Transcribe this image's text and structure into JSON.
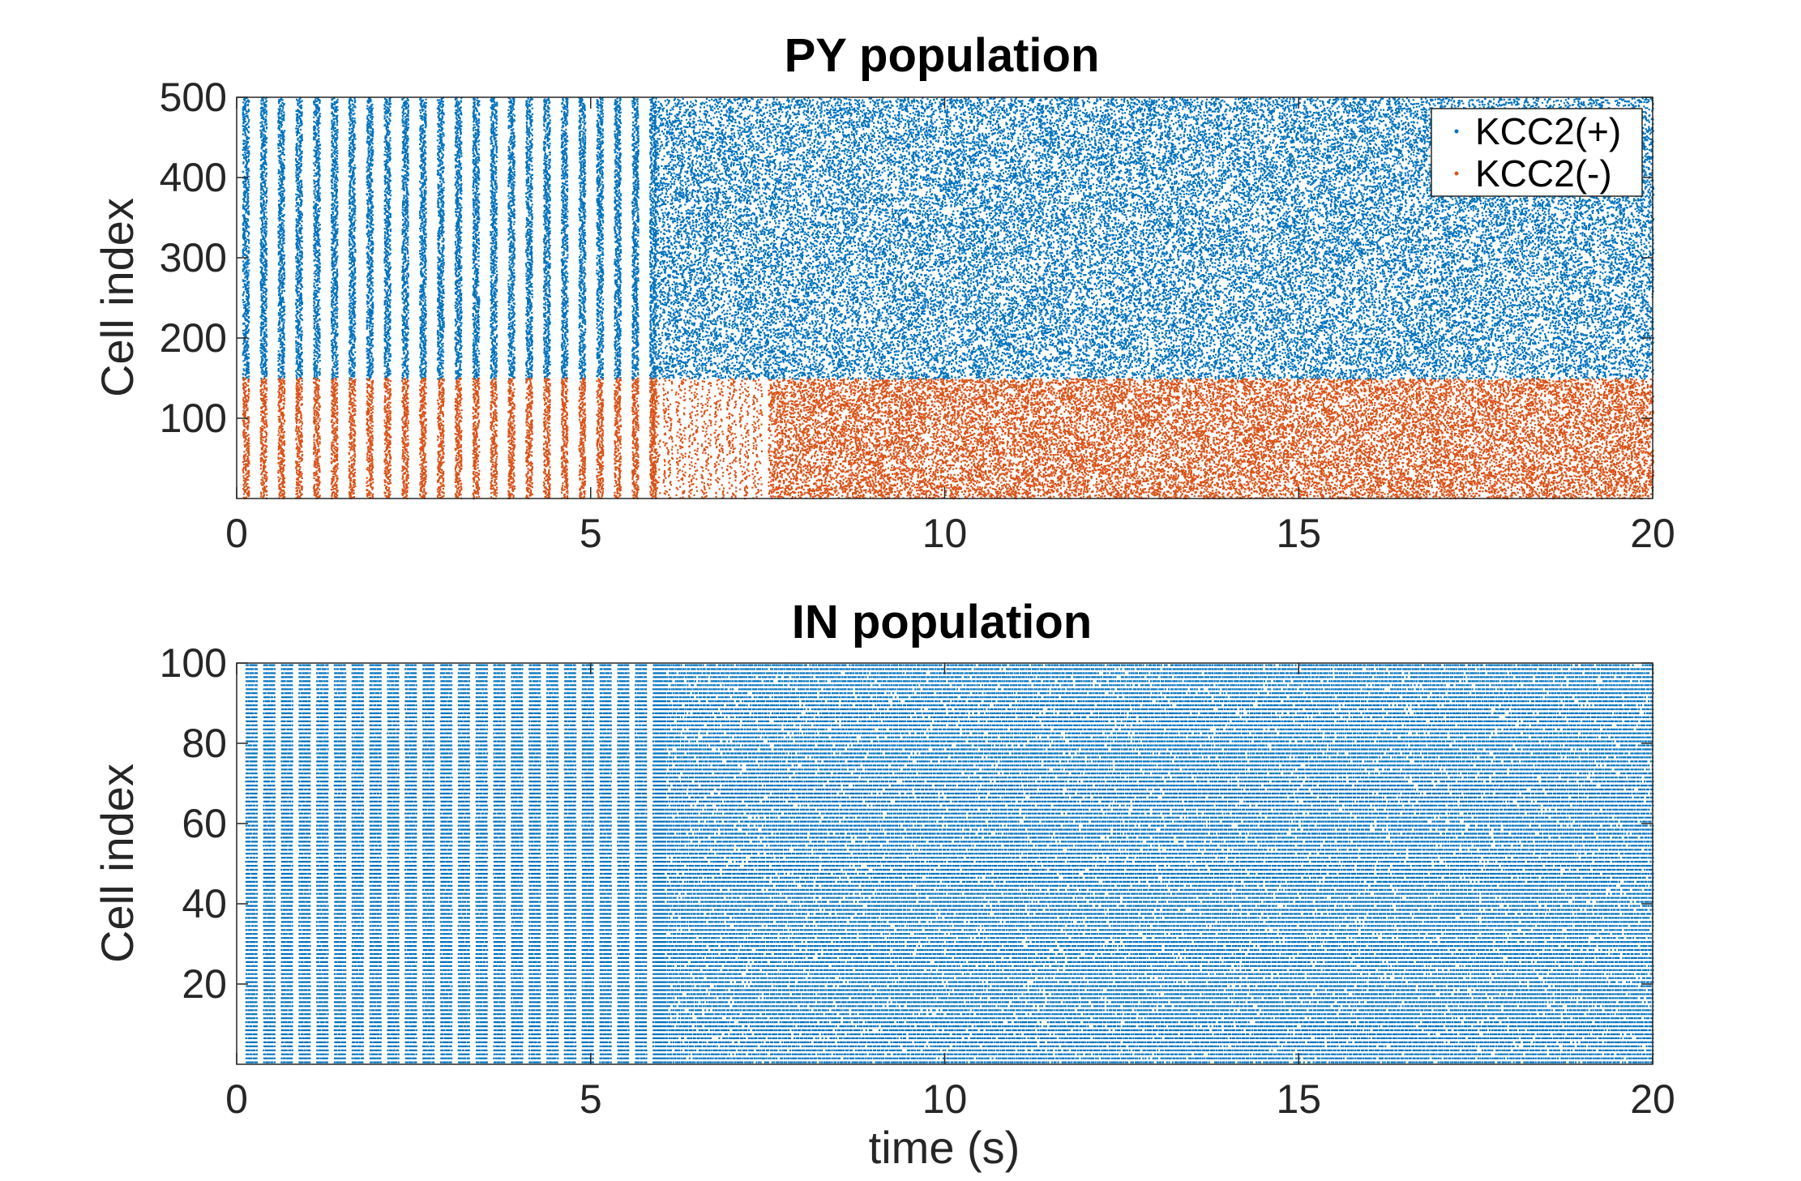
{
  "chart_data": [
    {
      "type": "scatter",
      "title": "PY population",
      "xlabel": "",
      "ylabel": "Cell index",
      "xlim": [
        0,
        20
      ],
      "ylim": [
        0,
        500
      ],
      "xticks": [
        0,
        5,
        10,
        15,
        20
      ],
      "yticks": [
        100,
        200,
        300,
        400,
        500
      ],
      "grid": false,
      "legend_position": "top-right",
      "series": [
        {
          "name": "KCC2(+)",
          "color": "#0072BD",
          "cell_range": [
            150,
            500
          ],
          "synchronous_bursts_until": 5.9,
          "burst_period": 0.25,
          "asynchronous_after": 5.9
        },
        {
          "name": "KCC2(-)",
          "color": "#D95319",
          "cell_range": [
            1,
            150
          ],
          "synchronous_bursts_until": 5.9,
          "burst_period": 0.25,
          "transition_until": 7.5,
          "asynchronous_after": 7.5
        }
      ]
    },
    {
      "type": "scatter",
      "title": "IN population",
      "xlabel": "time (s)",
      "ylabel": "Cell index",
      "xlim": [
        0,
        20
      ],
      "ylim": [
        0,
        100
      ],
      "xticks": [
        0,
        5,
        10,
        15,
        20
      ],
      "yticks": [
        20,
        40,
        60,
        80,
        100
      ],
      "grid": false,
      "series": [
        {
          "color": "#0072BD",
          "cell_range": [
            1,
            100
          ],
          "synchronous_bursts_until": 5.9,
          "burst_period": 0.25,
          "tonic_after": 5.9
        }
      ]
    }
  ]
}
